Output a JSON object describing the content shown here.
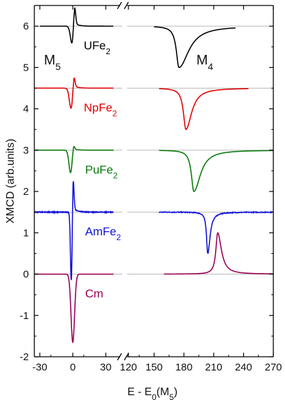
{
  "chart_data": {
    "type": "line",
    "ylabel": "XMCD (arb.units)",
    "xlabel": "E - E0(M5)",
    "xlabel_parts": {
      "main": "E - E",
      "sub0": "0",
      "paren_open": "(M",
      "sub1": "5",
      "paren_close": ")"
    },
    "axis_break": true,
    "xlim_left": [
      -35,
      45
    ],
    "xlim_right": [
      120,
      270
    ],
    "ylim": [
      -2,
      6.5
    ],
    "x_ticks_left": [
      -30,
      0,
      30
    ],
    "x_ticks_right": [
      120,
      150,
      180,
      210,
      240,
      270
    ],
    "y_ticks": [
      -2,
      -1,
      0,
      1,
      2,
      3,
      4,
      5,
      6
    ],
    "edge_labels": [
      {
        "text": "M",
        "sub": "5"
      },
      {
        "text": "M",
        "sub": "4"
      }
    ],
    "series": [
      {
        "name": "UFe2",
        "label_main": "UFe",
        "label_sub": "2",
        "color": "#000000",
        "baseline": 6.0,
        "m5": {
          "range": [
            -30,
            37
          ],
          "center": -0.5,
          "neg_amp": 0.45,
          "neg_width": 1.6,
          "pos_amp": 0.55,
          "pos_center": 1.5,
          "pos_width": 1.0,
          "tail": 0.08
        },
        "m4": {
          "range": [
            150,
            232
          ],
          "center": 175,
          "amp": 1.0,
          "left_w": 3.2,
          "right_w": 12
        },
        "baseline_right_segment": [
          235,
          270
        ]
      },
      {
        "name": "NpFe2",
        "label_main": "NpFe",
        "label_sub": "2",
        "color": "#e00000",
        "baseline": 4.5,
        "m5": {
          "range": [
            -35,
            37
          ],
          "center": -1.5,
          "neg_amp": 0.5,
          "neg_width": 1.6,
          "pos_amp": 0.32,
          "pos_center": 0.9,
          "pos_width": 1.0,
          "tail": 0.06
        },
        "m4": {
          "range": [
            155,
            245
          ],
          "center": 182,
          "amp": 1.0,
          "left_w": 3.0,
          "right_w": 7
        }
      },
      {
        "name": "PuFe2",
        "label_main": "PuFe",
        "label_sub": "2",
        "color": "#0a7a0a",
        "baseline": 3.0,
        "m5": {
          "range": [
            -35,
            37
          ],
          "center": -2.0,
          "neg_amp": 0.55,
          "neg_width": 1.5,
          "pos_amp": 0.15,
          "pos_center": 0.5,
          "pos_width": 1.0,
          "tail": 0.03
        },
        "m4": {
          "range": [
            155,
            270
          ],
          "center": 190,
          "amp": 1.0,
          "left_w": 3.0,
          "right_w": 8
        }
      },
      {
        "name": "AmFe2",
        "label_main": "AmFe",
        "label_sub": "2",
        "color": "#1010d8",
        "baseline": 1.5,
        "m5": {
          "range": [
            -35,
            37
          ],
          "center": -1.3,
          "neg_amp": 1.78,
          "neg_width": 0.8,
          "pos_amp": 0.85,
          "pos_center": 0.2,
          "pos_width": 0.8,
          "tail": 0.1
        },
        "m4": {
          "range": [
            155,
            270
          ],
          "center": 204,
          "amp": 1.0,
          "left_w": 1.5,
          "right_w": 2.8
        }
      },
      {
        "name": "Cm",
        "label_main": "Cm",
        "label_sub": "",
        "color": "#990055",
        "baseline": 0.0,
        "m5": {
          "range": [
            -35,
            37
          ],
          "center": 0.0,
          "neg_amp": 1.65,
          "neg_width": 1.6,
          "pos_amp": 0.0,
          "pos_center": 0.0,
          "pos_width": 1.0,
          "tail": 0.0
        },
        "m4": {
          "range": [
            160,
            270
          ],
          "center": 214,
          "amp": -1.0,
          "left_w": 2.2,
          "right_w": 4.5
        }
      }
    ],
    "grid": false,
    "legend": "none"
  }
}
